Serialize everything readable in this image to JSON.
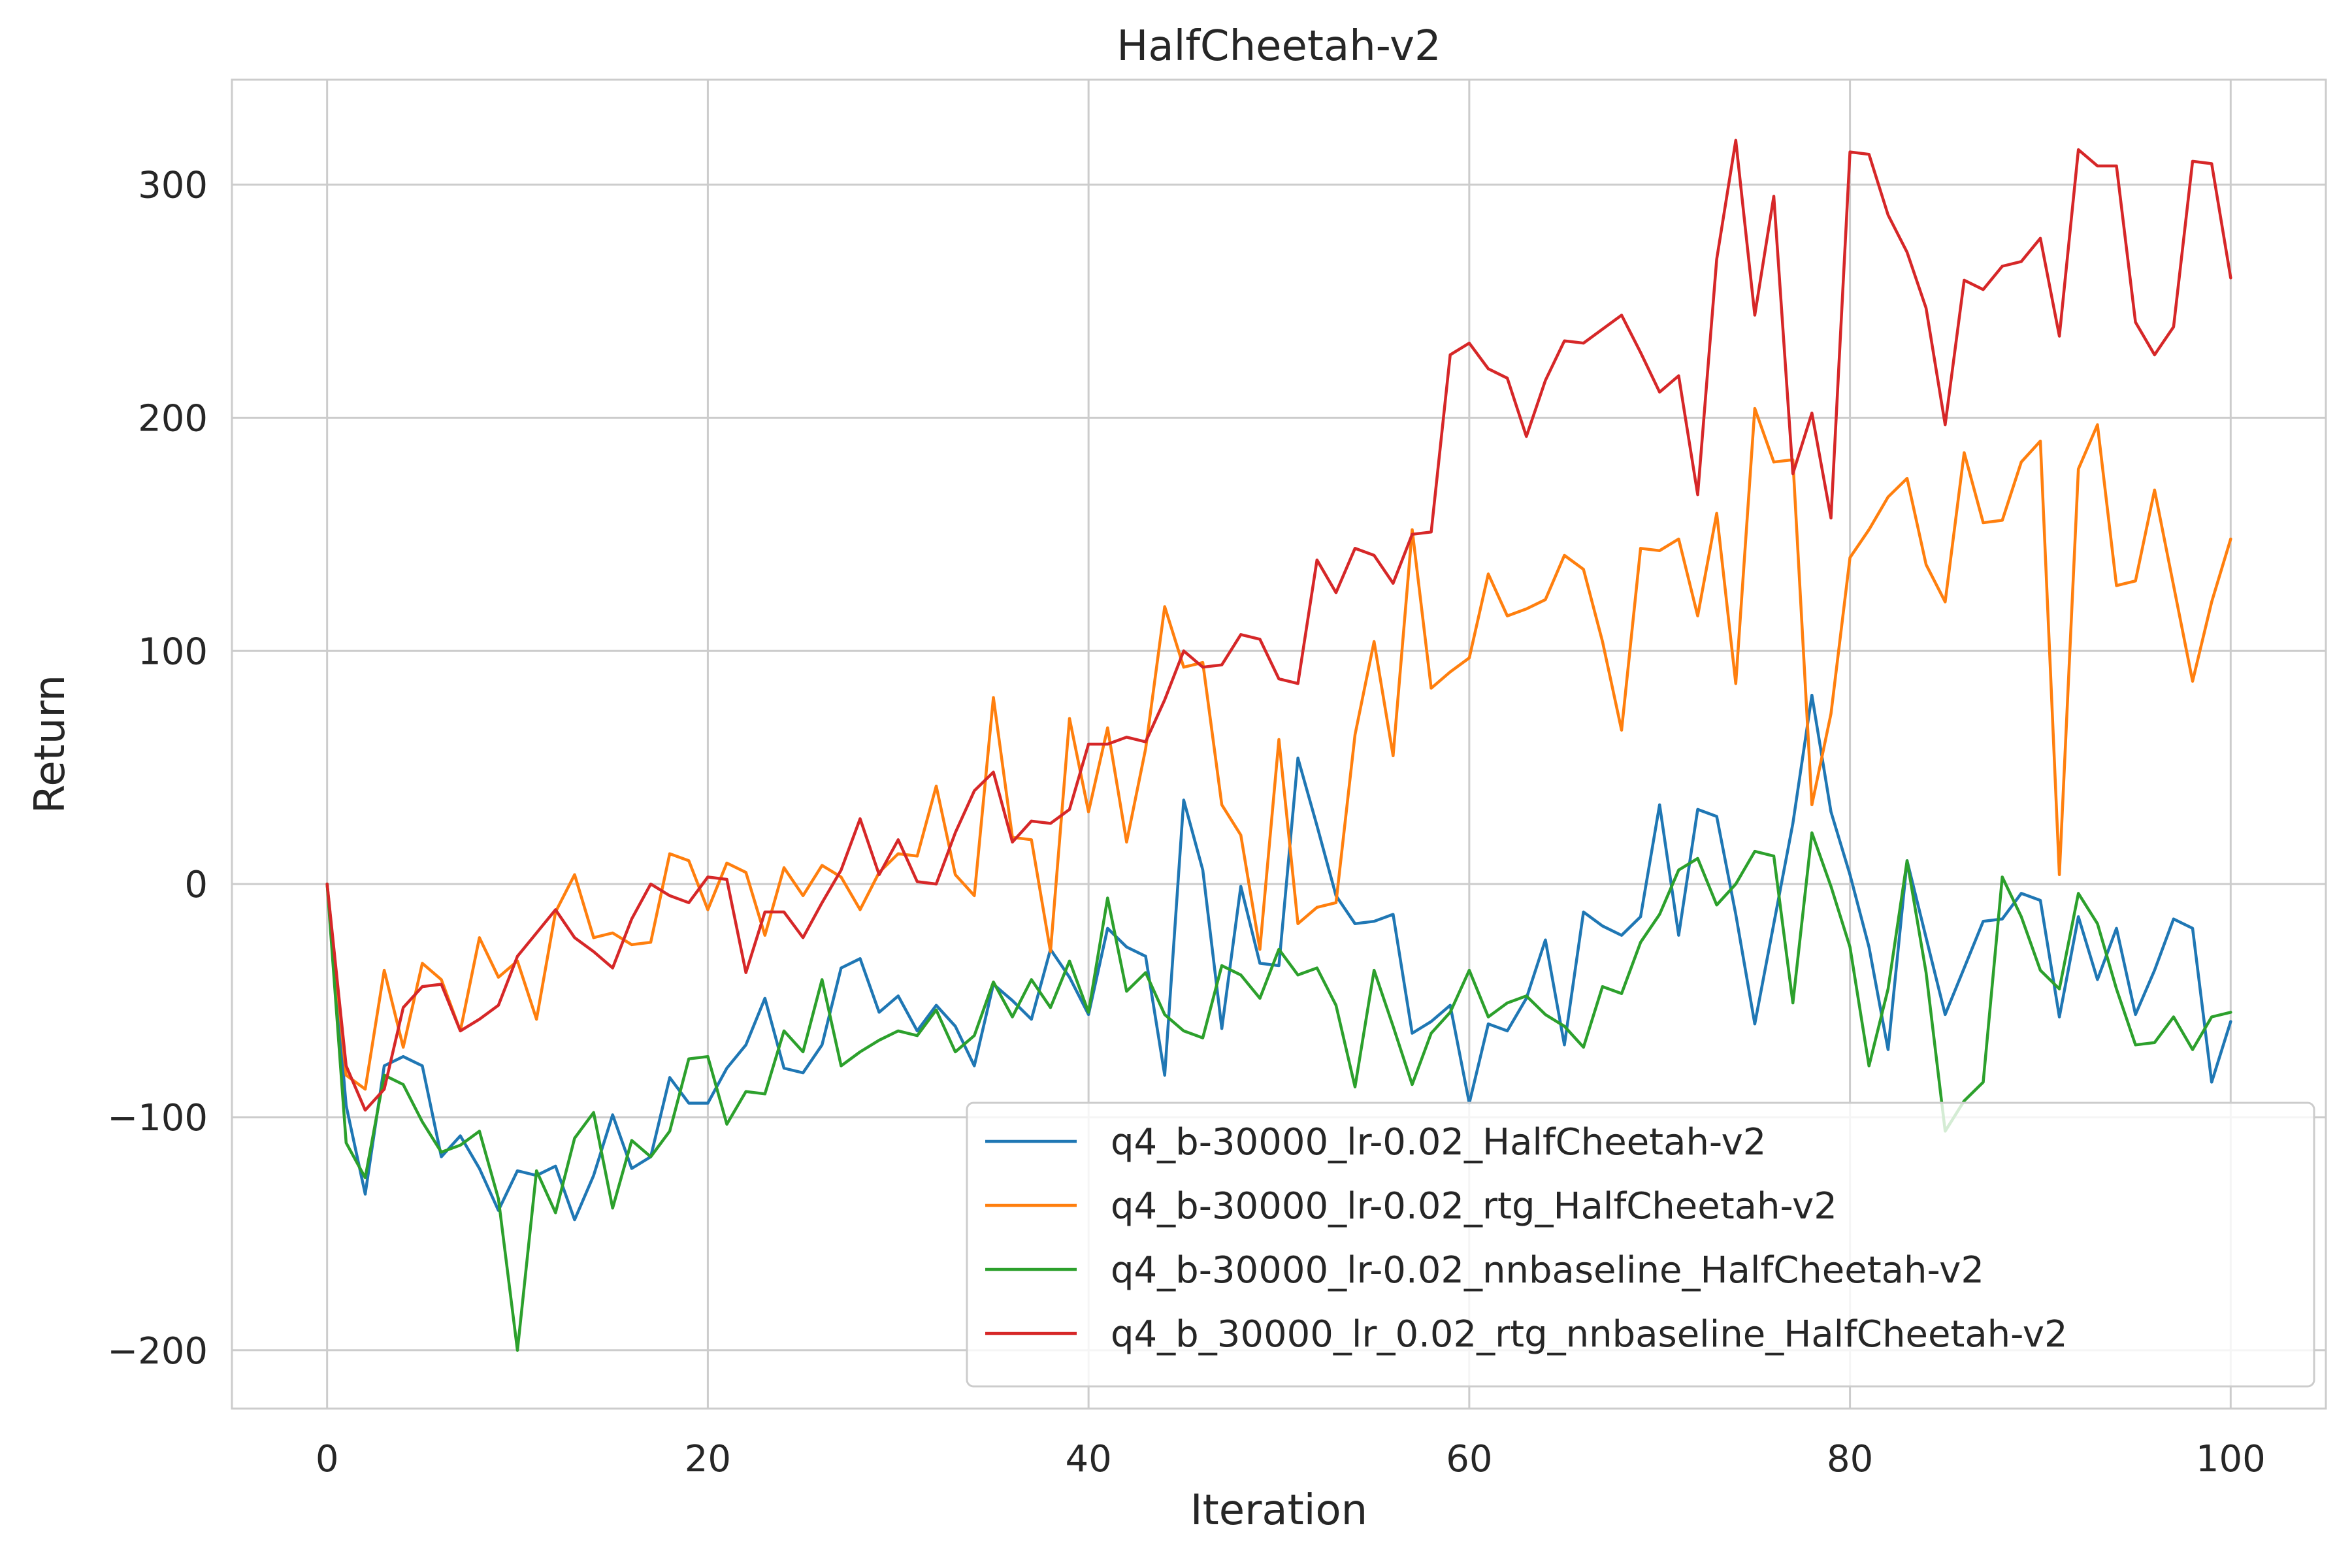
{
  "chart_data": {
    "type": "line",
    "title": "HalfCheetah-v2",
    "xlabel": "Iteration",
    "ylabel": "Return",
    "xlim": [
      -5,
      105
    ],
    "ylim": [
      -225,
      345
    ],
    "xticks": [
      0,
      20,
      40,
      60,
      80,
      100
    ],
    "xtick_labels": [
      "0",
      "20",
      "40",
      "60",
      "80",
      "100"
    ],
    "yticks": [
      -200,
      -100,
      0,
      100,
      200,
      300
    ],
    "ytick_labels": [
      "−200",
      "−100",
      "0",
      "100",
      "200",
      "300"
    ],
    "grid": true,
    "legend_position": "lower-right",
    "x": [
      0,
      1,
      2,
      3,
      4,
      5,
      6,
      7,
      8,
      9,
      10,
      11,
      12,
      13,
      14,
      15,
      16,
      17,
      18,
      19,
      20,
      21,
      22,
      23,
      24,
      25,
      26,
      27,
      28,
      29,
      30,
      31,
      32,
      33,
      34,
      35,
      36,
      37,
      38,
      39,
      40,
      41,
      42,
      43,
      44,
      45,
      46,
      47,
      48,
      49,
      50,
      51,
      52,
      53,
      54,
      55,
      56,
      57,
      58,
      59,
      60,
      61,
      62,
      63,
      64,
      65,
      66,
      67,
      68,
      69,
      70,
      71,
      72,
      73,
      74,
      75,
      76,
      77,
      78,
      79,
      80,
      81,
      82,
      83,
      84,
      85,
      86,
      87,
      88,
      89,
      90,
      91,
      92,
      93,
      94,
      95,
      96,
      97,
      98,
      99,
      100
    ],
    "series": [
      {
        "name": "q4_b-30000_lr-0.02_HalfCheetah-v2",
        "color": "#1f77b4",
        "values": [
          0,
          -95,
          -133,
          -78,
          -74,
          -78,
          -117,
          -108,
          -122,
          -140,
          -123,
          -125,
          -121,
          -144,
          -125,
          -99,
          -122,
          -117,
          -83,
          -94,
          -94,
          -79,
          -69,
          -49,
          -79,
          -81,
          -69,
          -36,
          -32,
          -55,
          -48,
          -63,
          -52,
          -61,
          -78,
          -43,
          -50,
          -58,
          -28,
          -40,
          -56,
          -19,
          -27,
          -31,
          -82,
          36,
          6,
          -62,
          -1,
          -34,
          -35,
          54,
          25,
          -5,
          -17,
          -16,
          -13,
          -64,
          -59,
          -52,
          -94,
          -60,
          -63,
          -49,
          -24,
          -69,
          -12,
          -18,
          -22,
          -14,
          34,
          -22,
          32,
          29,
          -13,
          -60,
          -17,
          26,
          81,
          31,
          4,
          -27,
          -71,
          10,
          -23,
          -56,
          -36,
          -16,
          -15,
          -4,
          -7,
          -57,
          -14,
          -41,
          -19,
          -56,
          -37,
          -15,
          -19,
          -85,
          -59
        ]
      },
      {
        "name": "q4_b-30000_lr-0.02_rtg_HalfCheetah-v2",
        "color": "#ff7f0e",
        "values": [
          0,
          -82,
          -88,
          -37,
          -70,
          -34,
          -41,
          -63,
          -23,
          -40,
          -33,
          -58,
          -12,
          4,
          -23,
          -21,
          -26,
          -25,
          13,
          10,
          -11,
          9,
          5,
          -22,
          7,
          -5,
          8,
          3,
          -11,
          5,
          13,
          12,
          42,
          4,
          -5,
          80,
          20,
          19,
          -29,
          71,
          31,
          67,
          18,
          58,
          119,
          93,
          95,
          34,
          21,
          -28,
          62,
          -17,
          -10,
          -8,
          64,
          104,
          55,
          152,
          84,
          91,
          97,
          133,
          115,
          118,
          122,
          141,
          135,
          104,
          66,
          144,
          143,
          148,
          115,
          159,
          86,
          204,
          181,
          182,
          34,
          73,
          140,
          152,
          166,
          174,
          137,
          121,
          185,
          155,
          156,
          181,
          190,
          4,
          178,
          197,
          128,
          130,
          169,
          128,
          87,
          121,
          148
        ]
      },
      {
        "name": "q4_b-30000_lr-0.02_nnbaseline_HalfCheetah-v2",
        "color": "#2ca02c",
        "values": [
          0,
          -111,
          -126,
          -82,
          -86,
          -102,
          -115,
          -112,
          -106,
          -135,
          -200,
          -123,
          -141,
          -109,
          -98,
          -139,
          -110,
          -117,
          -106,
          -75,
          -74,
          -103,
          -89,
          -90,
          -63,
          -72,
          -41,
          -78,
          -72,
          -67,
          -63,
          -65,
          -54,
          -72,
          -65,
          -42,
          -57,
          -41,
          -53,
          -33,
          -55,
          -6,
          -46,
          -38,
          -56,
          -63,
          -66,
          -35,
          -39,
          -49,
          -28,
          -39,
          -36,
          -52,
          -87,
          -37,
          -61,
          -86,
          -64,
          -55,
          -37,
          -57,
          -51,
          -48,
          -56,
          -61,
          -70,
          -44,
          -47,
          -25,
          -13,
          6,
          11,
          -9,
          0,
          14,
          12,
          -51,
          22,
          -1,
          -27,
          -78,
          -45,
          10,
          -38,
          -106,
          -93,
          -85,
          3,
          -14,
          -37,
          -45,
          -4,
          -17,
          -45,
          -69,
          -68,
          -57,
          -71,
          -57,
          -55
        ]
      },
      {
        "name": "q4_b_30000_lr_0.02_rtg_nnbaseline_HalfCheetah-v2",
        "color": "#d62728",
        "values": [
          0,
          -78,
          -97,
          -88,
          -53,
          -44,
          -43,
          -63,
          -58,
          -52,
          -31,
          -21,
          -11,
          -23,
          -29,
          -36,
          -15,
          0,
          -5,
          -8,
          3,
          2,
          -38,
          -12,
          -12,
          -23,
          -8,
          6,
          28,
          4,
          19,
          1,
          0,
          22,
          40,
          48,
          18,
          27,
          26,
          32,
          60,
          60,
          63,
          61,
          79,
          100,
          93,
          94,
          107,
          105,
          88,
          86,
          139,
          125,
          144,
          141,
          129,
          150,
          151,
          227,
          232,
          221,
          217,
          192,
          216,
          233,
          232,
          238,
          244,
          228,
          211,
          218,
          167,
          268,
          319,
          244,
          295,
          176,
          202,
          157,
          314,
          313,
          287,
          271,
          247,
          197,
          259,
          255,
          265,
          267,
          277,
          235,
          315,
          308,
          308,
          241,
          227,
          239,
          310,
          309,
          260
        ]
      }
    ]
  }
}
